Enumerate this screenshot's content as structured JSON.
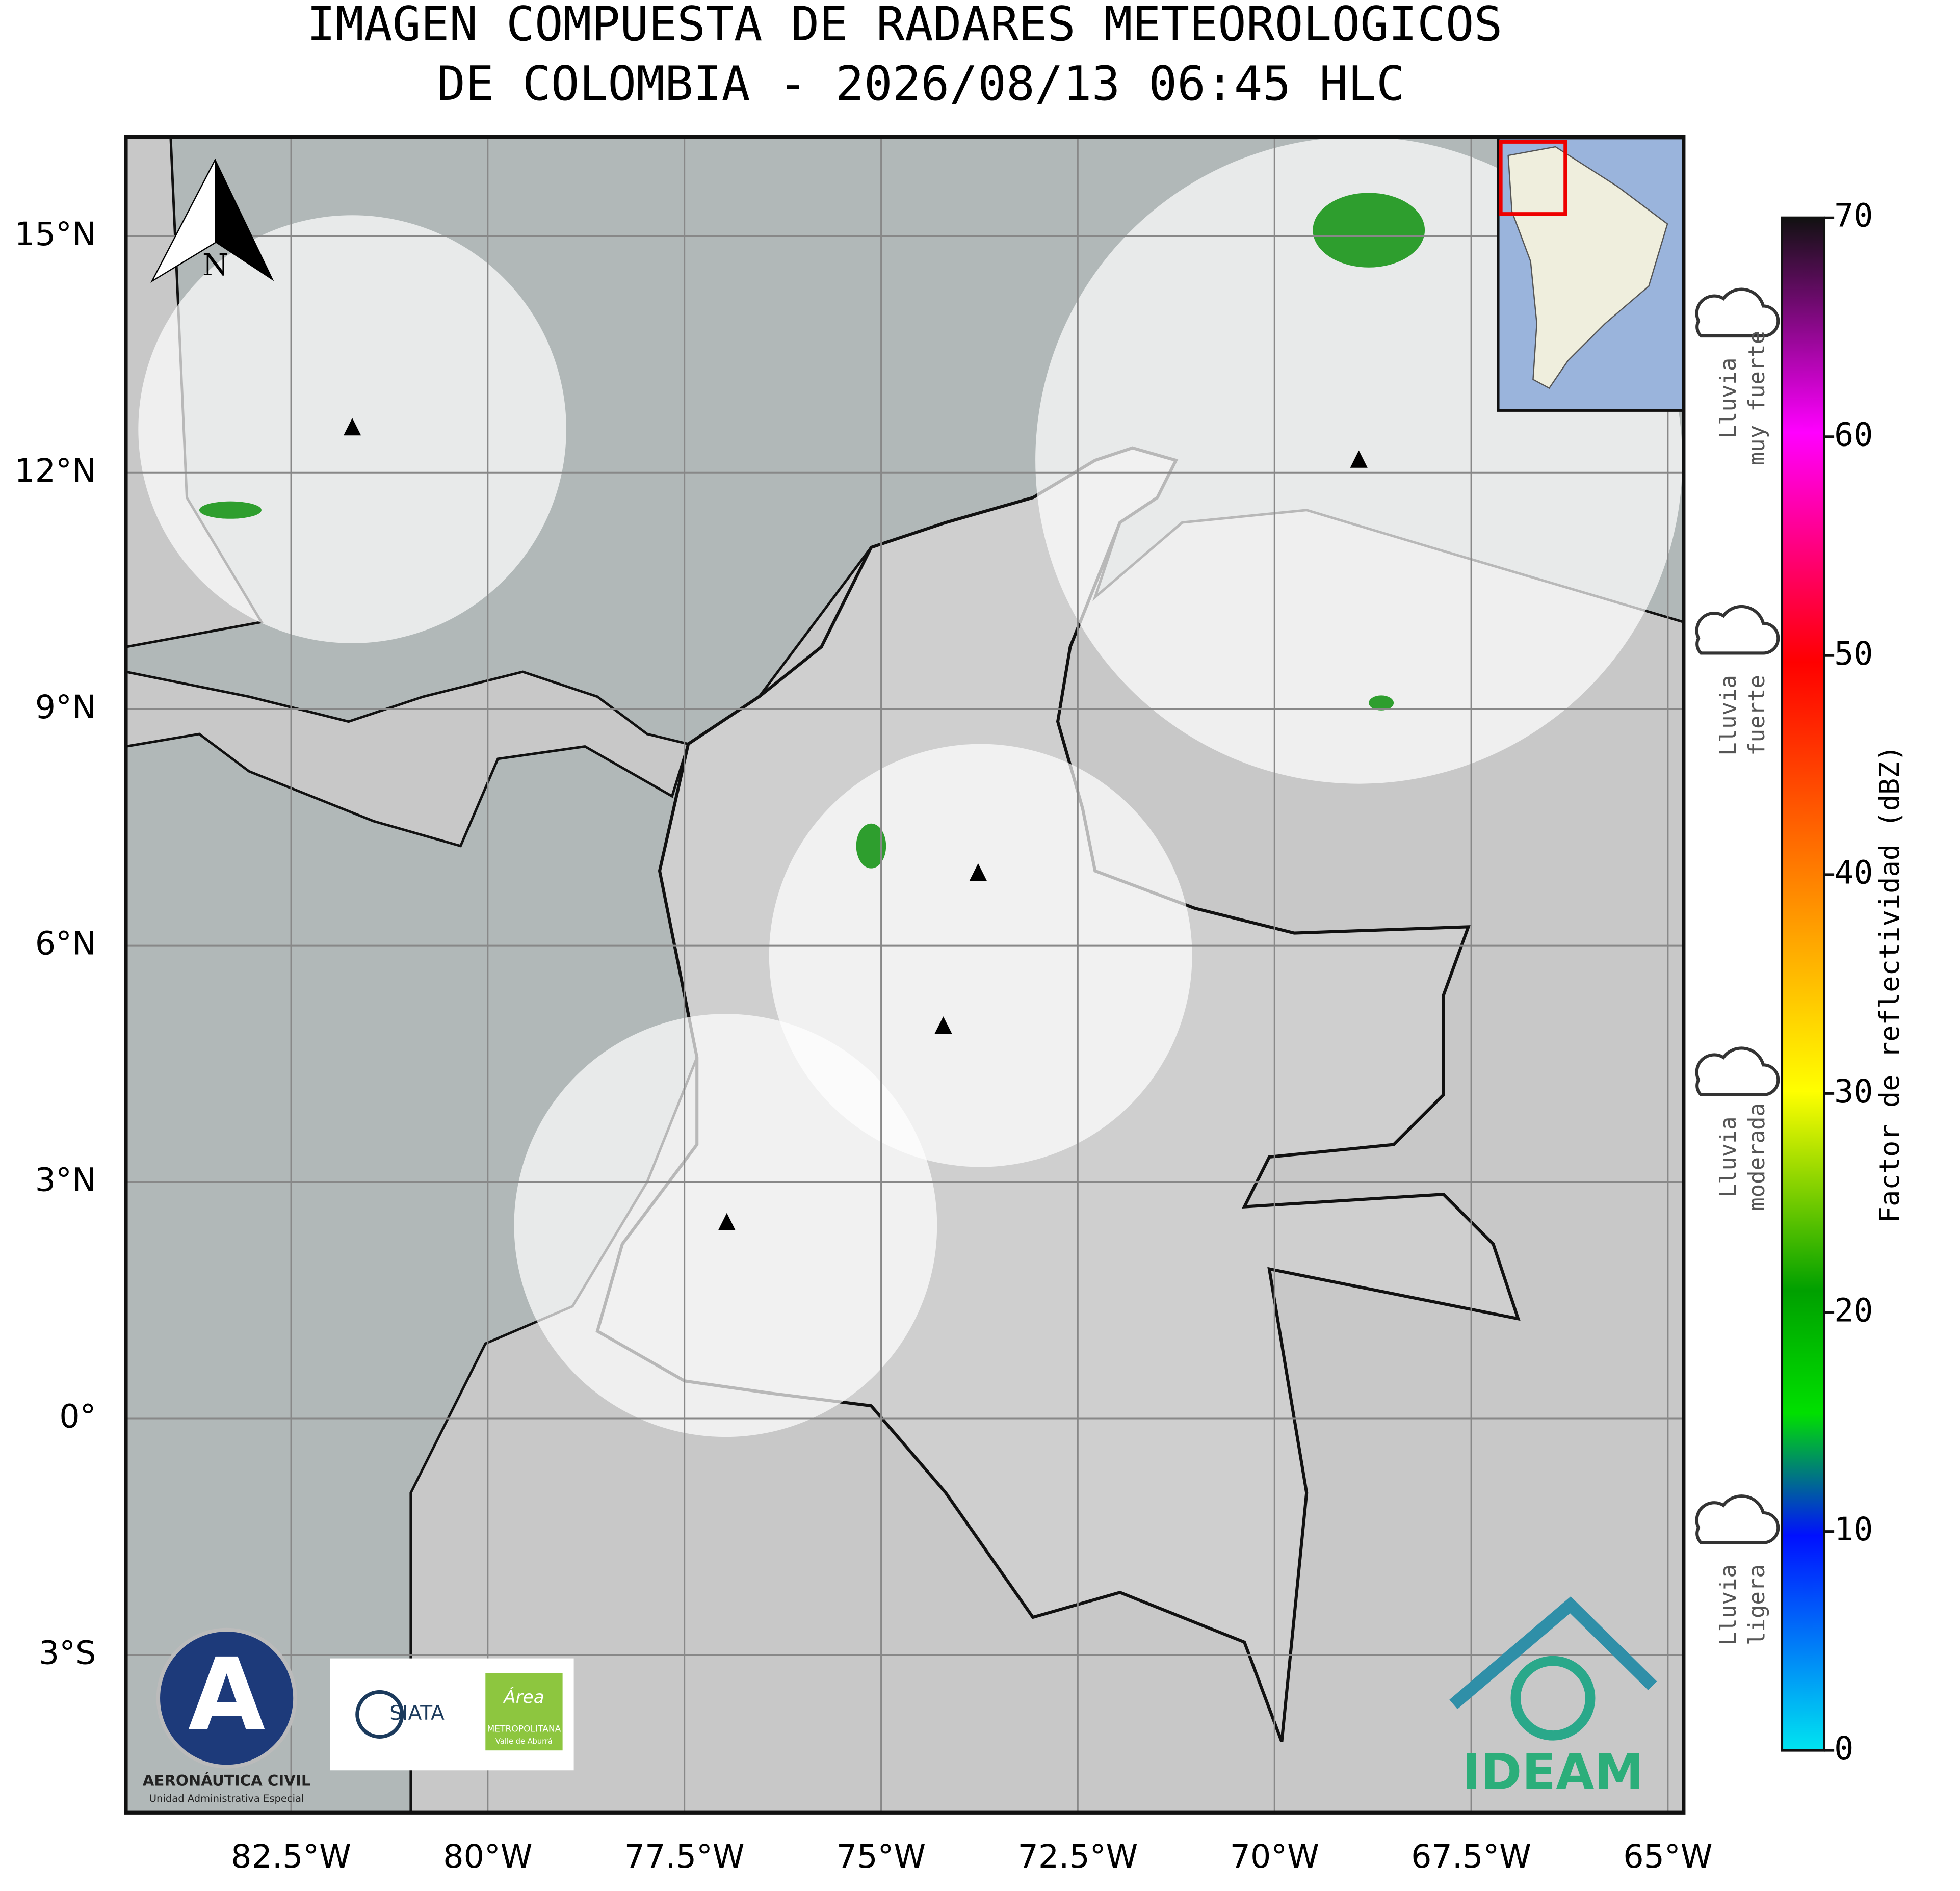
{
  "title": [
    "IMAGEN COMPUESTA DE RADARES METEOROLOGICOS",
    "DE COLOMBIA - 2026/08/13 06:45 HLC"
  ],
  "map": {
    "xlim": [
      -84.6,
      -64.8
    ],
    "ylim": [
      -5,
      16.26
    ],
    "xticks": [
      {
        "value": -82.5,
        "label": "82.5°W"
      },
      {
        "value": -80,
        "label": "80°W"
      },
      {
        "value": -77.5,
        "label": "77.5°W"
      },
      {
        "value": -75,
        "label": "75°W"
      },
      {
        "value": -72.5,
        "label": "72.5°W"
      },
      {
        "value": -70,
        "label": "70°W"
      },
      {
        "value": -67.5,
        "label": "67.5°W"
      },
      {
        "value": -65,
        "label": "65°W"
      }
    ],
    "yticks": [
      {
        "value": 15,
        "label": "15°N"
      },
      {
        "value": 12,
        "label": "12°N"
      },
      {
        "value": 9,
        "label": "9°N"
      },
      {
        "value": 6,
        "label": "6°N"
      },
      {
        "value": 3,
        "label": "3°N"
      },
      {
        "value": 0,
        "label": "0°"
      },
      {
        "value": -3,
        "label": "3°S"
      }
    ],
    "north_label": "N"
  },
  "colorbar": {
    "label": "Factor de reflectividad (dBZ)",
    "lim": [
      0,
      70
    ],
    "ticks": [
      0,
      10,
      20,
      30,
      40,
      50,
      60,
      70
    ],
    "categories": [
      [
        "Lluvia",
        "ligera"
      ],
      [
        "Lluvia",
        "moderada"
      ],
      [
        "Lluvia",
        "fuerte"
      ],
      [
        "Lluvia",
        "muy fuerte"
      ]
    ]
  },
  "logos": {
    "aerocivil": [
      "AERONÁUTICA CIVIL",
      "Unidad Administrativa Especial"
    ],
    "siata": "SIATA",
    "area": [
      "Área",
      "METROPOLITANA",
      "Valle de Aburrá"
    ],
    "ideam": "IDEAM"
  }
}
